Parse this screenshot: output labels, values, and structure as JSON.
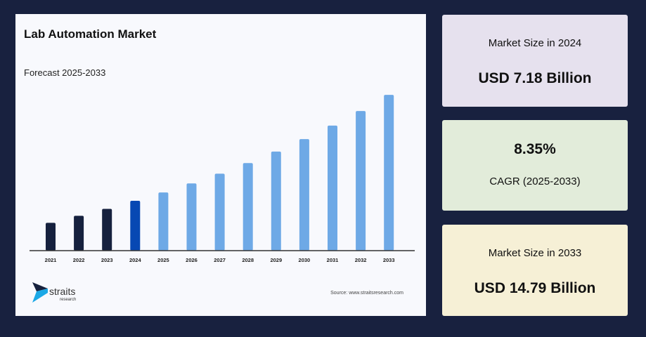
{
  "chart_data": {
    "type": "bar",
    "title": "Lab Automation Market",
    "subtitle": "Forecast 2025-2033",
    "categories": [
      "2021",
      "2022",
      "2023",
      "2024",
      "2025",
      "2026",
      "2027",
      "2028",
      "2029",
      "2030",
      "2031",
      "2032",
      "2033"
    ],
    "values": [
      5.6,
      6.1,
      6.6,
      7.18,
      7.78,
      8.43,
      9.13,
      9.89,
      10.72,
      11.61,
      12.58,
      13.63,
      14.79
    ],
    "unit": "USD Billion",
    "colors": {
      "historical": "#16213e",
      "base_year": "#0748b3",
      "forecast": "#6ea9e6"
    },
    "ylim": [
      3.6,
      15.3
    ],
    "grid": false,
    "legend": "none",
    "source": "Source: www.straitsresearch.com"
  },
  "logo": {
    "name": "straits",
    "tagline": "research"
  },
  "cards": [
    {
      "label": "Market Size in 2024",
      "value": "USD 7.18 Billion",
      "color": "#e6e1ee"
    },
    {
      "label": "CAGR (2025-2033)",
      "value": "8.35%",
      "color": "#e2ecda"
    },
    {
      "label": "Market Size in 2033",
      "value": "USD 14.79 Billion",
      "color": "#f6f0d6"
    }
  ]
}
